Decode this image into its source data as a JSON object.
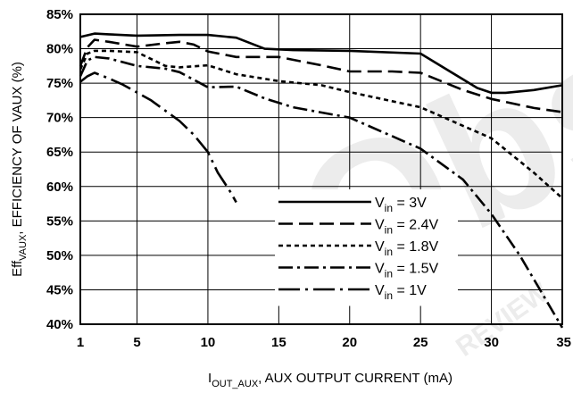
{
  "chart_data": {
    "type": "line",
    "xlabel": {
      "prefix": "I",
      "sub": "OUT_AUX",
      "rest": ", AUX OUTPUT CURRENT (mA)"
    },
    "ylabel": {
      "prefix": "Eff",
      "sub": "VAUX",
      "rest": ", EFFICIENCY OF VAUX (%)"
    },
    "xlim": [
      1,
      35
    ],
    "ylim": [
      40,
      85
    ],
    "x_ticks": [
      1,
      5,
      10,
      15,
      20,
      25,
      30,
      35
    ],
    "y_ticks": [
      "40%",
      "45%",
      "50%",
      "55%",
      "60%",
      "65%",
      "70%",
      "75%",
      "80%",
      "85%"
    ],
    "y_tick_values": [
      40,
      45,
      50,
      55,
      60,
      65,
      70,
      75,
      80,
      85
    ],
    "grid": true,
    "legend_position": "center-bottom",
    "series": [
      {
        "name": "3V",
        "dash": "solid",
        "x": [
          1,
          2,
          3,
          5,
          8,
          10,
          12,
          14,
          16,
          20,
          25,
          29,
          30,
          31,
          33,
          35
        ],
        "y": [
          81.7,
          82.2,
          82.1,
          81.9,
          82.0,
          82.0,
          81.6,
          80.0,
          79.8,
          79.7,
          79.3,
          74.3,
          73.6,
          73.6,
          74.0,
          74.7
        ]
      },
      {
        "name": "2.4V",
        "dash": "dash",
        "x": [
          1,
          1.5,
          2,
          3,
          5,
          7,
          8,
          9,
          10,
          12,
          15,
          18,
          20,
          23,
          25,
          28,
          30,
          33,
          35
        ],
        "y": [
          77.5,
          80.2,
          81.3,
          81.0,
          80.3,
          80.8,
          81.0,
          80.6,
          79.6,
          78.8,
          78.8,
          77.6,
          76.7,
          76.7,
          76.5,
          74.0,
          72.7,
          71.4,
          70.8
        ]
      },
      {
        "name": "1.8V",
        "dash": "short",
        "x": [
          1,
          1.5,
          2,
          3,
          5,
          7,
          8,
          10,
          12,
          15,
          18,
          20,
          25,
          30,
          33,
          35
        ],
        "y": [
          77.0,
          79.3,
          79.7,
          79.7,
          79.5,
          77.5,
          77.3,
          77.6,
          76.3,
          75.3,
          74.7,
          73.7,
          71.5,
          67.0,
          62.0,
          58.3
        ]
      },
      {
        "name": "1.5V",
        "dash": "dashdot",
        "x": [
          1,
          1.5,
          2,
          3,
          5,
          7,
          8,
          10,
          12,
          14,
          16,
          20,
          25,
          28,
          30,
          32,
          35
        ],
        "y": [
          76.0,
          78.3,
          78.8,
          78.6,
          77.5,
          77.1,
          76.6,
          74.4,
          74.5,
          72.8,
          71.5,
          70.0,
          65.5,
          61.0,
          56.0,
          50.0,
          39.5
        ]
      },
      {
        "name": "1V",
        "dash": "longdot",
        "x": [
          1,
          1.5,
          2,
          3,
          4,
          6,
          8,
          9,
          10,
          10.7,
          11.5,
          12
        ],
        "y": [
          75.2,
          76.0,
          76.5,
          75.7,
          74.8,
          72.5,
          69.5,
          67.5,
          65.0,
          62.0,
          59.5,
          57.7
        ]
      }
    ],
    "legend_prefix": {
      "main": "V",
      "sub": "in"
    }
  },
  "watermark": {
    "text1": "Obs",
    "text2": "REVIEW"
  },
  "colors": {
    "line": "#000000",
    "grid": "#000000",
    "watermark": "#efefef"
  }
}
